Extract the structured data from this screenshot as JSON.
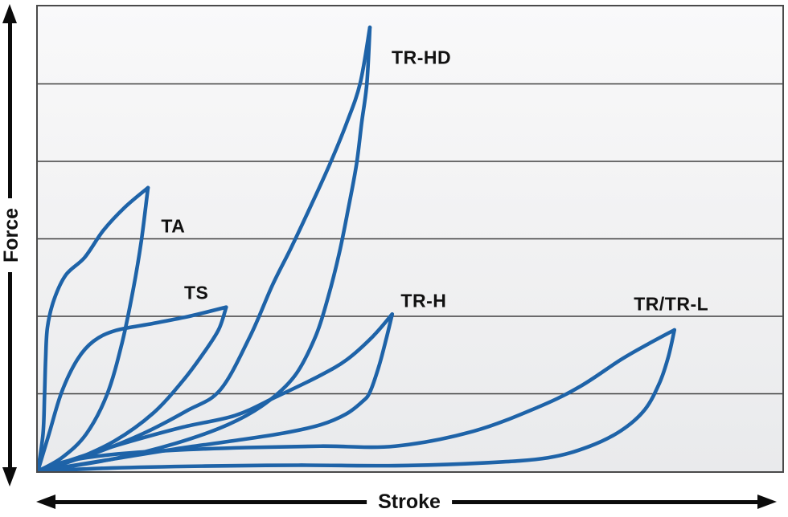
{
  "colors": {
    "curve": "#1e63a8",
    "grid": "#3f3f3f",
    "plot_border": "#4a4a4a",
    "axis_arrow": "#0b0b0b",
    "label_text": "#111111",
    "plot_bg_top": "#f9f9fa",
    "plot_bg_bottom": "#e9eaec",
    "page_bg": "#ffffff"
  },
  "chart_data": {
    "type": "line",
    "title": "",
    "xlabel": "Stroke",
    "ylabel": "Force",
    "x_range": [
      0,
      100
    ],
    "y_range": [
      0,
      100
    ],
    "axes_numeric_ticks": false,
    "grid": {
      "horizontal_lines": 5,
      "vertical_lines": 0,
      "evenly_spaced": true
    },
    "legend_position": "labels-inside-plot",
    "description": "Force vs. stroke hysteresis loops for five damper types; each loop starts and ends at the origin (loading branch up to a sharp peak, return branch back).",
    "series": [
      {
        "name": "TA",
        "label_pos": {
          "x": 18.1,
          "y": 53.0
        },
        "peak": {
          "x": 14.8,
          "y": 61.0
        },
        "loading": [
          [
            0,
            0
          ],
          [
            0.7,
            8
          ],
          [
            0.9,
            16
          ],
          [
            1.05,
            24
          ],
          [
            1.3,
            31
          ],
          [
            2.2,
            37
          ],
          [
            3.8,
            42.3
          ],
          [
            6.3,
            46
          ],
          [
            8.8,
            51.8
          ],
          [
            11.7,
            56.8
          ],
          [
            14.8,
            61
          ]
        ],
        "return": [
          [
            14.8,
            61
          ],
          [
            13.9,
            49.5
          ],
          [
            12.8,
            39
          ],
          [
            11.3,
            27.5
          ],
          [
            9.3,
            16.5
          ],
          [
            6.5,
            8
          ],
          [
            3.3,
            3
          ],
          [
            0,
            0
          ]
        ]
      },
      {
        "name": "TS",
        "label_pos": {
          "x": 21.2,
          "y": 38.8
        },
        "peak": {
          "x": 25.3,
          "y": 35.3
        },
        "loading": [
          [
            0,
            0
          ],
          [
            1.5,
            8
          ],
          [
            3.2,
            17
          ],
          [
            5.3,
            24
          ],
          [
            7.5,
            28
          ],
          [
            10.5,
            30.3
          ],
          [
            15.5,
            31.8
          ],
          [
            20.5,
            33.4
          ],
          [
            25.3,
            35.3
          ]
        ],
        "return": [
          [
            25.3,
            35.3
          ],
          [
            24.3,
            30.5
          ],
          [
            22.3,
            25.5
          ],
          [
            19.5,
            19.5
          ],
          [
            15.5,
            12.5
          ],
          [
            10.3,
            6.5
          ],
          [
            4.5,
            2.2
          ],
          [
            0,
            0
          ]
        ]
      },
      {
        "name": "TR-HD",
        "label_pos": {
          "x": 51.3,
          "y": 89.0
        },
        "peak": {
          "x": 44.6,
          "y": 95.5
        },
        "loading": [
          [
            0,
            0
          ],
          [
            7,
            3.5
          ],
          [
            14,
            8
          ],
          [
            20,
            13
          ],
          [
            24.5,
            17.5
          ],
          [
            28.5,
            29
          ],
          [
            31.5,
            40
          ],
          [
            34,
            48
          ],
          [
            36.5,
            56.5
          ],
          [
            39.2,
            66
          ],
          [
            41.5,
            75
          ],
          [
            43.3,
            83.5
          ],
          [
            44.6,
            95.5
          ]
        ],
        "return": [
          [
            44.6,
            95.5
          ],
          [
            44.2,
            83.5
          ],
          [
            43.5,
            75
          ],
          [
            42.8,
            66
          ],
          [
            41.7,
            56.5
          ],
          [
            40.5,
            47
          ],
          [
            39,
            37.5
          ],
          [
            37.3,
            29
          ],
          [
            34.5,
            20.5
          ],
          [
            30.5,
            14.5
          ],
          [
            25.5,
            10
          ],
          [
            18.5,
            6
          ],
          [
            10,
            2.6
          ],
          [
            0,
            0
          ]
        ]
      },
      {
        "name": "TR-H",
        "label_pos": {
          "x": 51.6,
          "y": 37.0
        },
        "peak": {
          "x": 47.6,
          "y": 33.8
        },
        "loading": [
          [
            0,
            0
          ],
          [
            5.5,
            3
          ],
          [
            11.5,
            6
          ],
          [
            19.5,
            9.5
          ],
          [
            26.5,
            12
          ],
          [
            32,
            16
          ],
          [
            37.8,
            20.5
          ],
          [
            41.5,
            24
          ],
          [
            45,
            29
          ],
          [
            47.6,
            33.8
          ]
        ],
        "return": [
          [
            47.6,
            33.8
          ],
          [
            46.8,
            28.5
          ],
          [
            45.8,
            22.5
          ],
          [
            44.6,
            17
          ],
          [
            43.6,
            15
          ],
          [
            41.4,
            12.3
          ],
          [
            38,
            10
          ],
          [
            33,
            8.2
          ],
          [
            26.5,
            6.6
          ],
          [
            18.5,
            4.8
          ],
          [
            10,
            2.6
          ],
          [
            0,
            0
          ]
        ]
      },
      {
        "name": "TR/TR-L",
        "label_pos": {
          "x": 84.7,
          "y": 36.4
        },
        "peak": {
          "x": 85.5,
          "y": 30.4
        },
        "loading": [
          [
            0,
            0
          ],
          [
            4,
            2.2
          ],
          [
            10,
            3.6
          ],
          [
            18,
            4.5
          ],
          [
            28,
            5.1
          ],
          [
            38,
            5.4
          ],
          [
            48,
            5.4
          ],
          [
            58.5,
            8.6
          ],
          [
            67.5,
            14
          ],
          [
            73,
            18.4
          ],
          [
            78.3,
            24
          ],
          [
            82,
            27.4
          ],
          [
            85.5,
            30.4
          ]
        ],
        "return": [
          [
            85.5,
            30.4
          ],
          [
            84.7,
            24.7
          ],
          [
            83.5,
            19
          ],
          [
            81.5,
            13.2
          ],
          [
            78.3,
            8.7
          ],
          [
            74,
            5.3
          ],
          [
            68.5,
            2.9
          ],
          [
            60,
            1.8
          ],
          [
            48,
            1.2
          ],
          [
            35,
            1.3
          ],
          [
            22,
            1.1
          ],
          [
            10,
            0.7
          ],
          [
            0,
            0
          ]
        ]
      }
    ]
  }
}
